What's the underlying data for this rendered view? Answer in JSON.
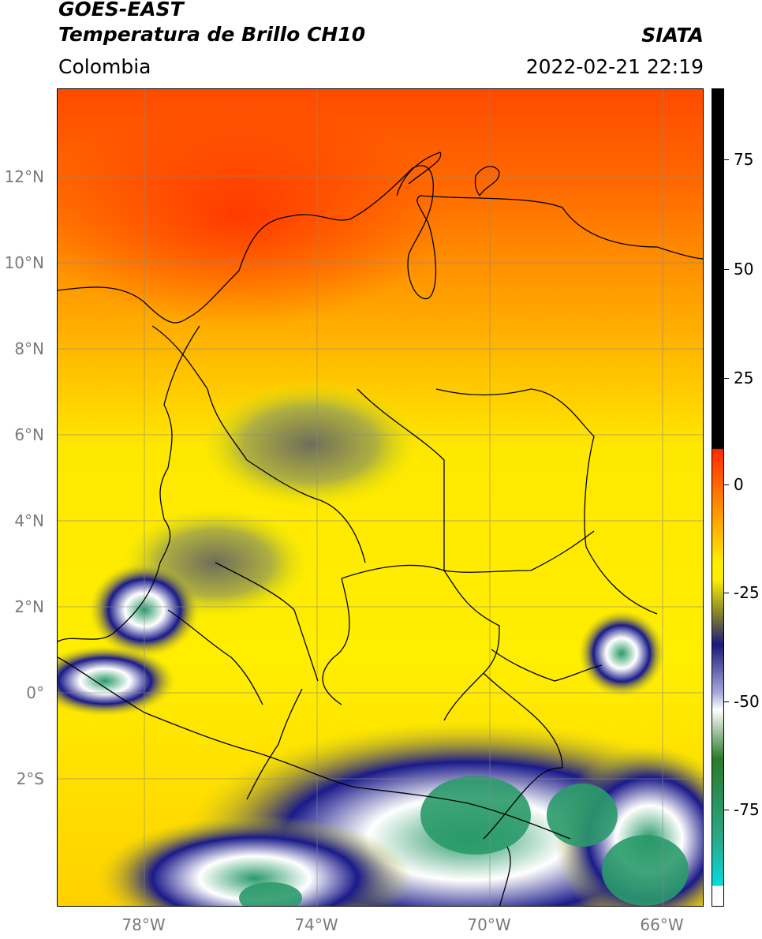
{
  "header": {
    "line1": "GOES-EAST",
    "line2": "Temperatura de Brillo CH10",
    "line3": "Colombia",
    "right1": "SIATA",
    "right2": "2022-02-21 22:19"
  },
  "map": {
    "lat_labels": [
      "12°N",
      "10°N",
      "8°N",
      "6°N",
      "4°N",
      "2°N",
      "0°",
      "2°S"
    ],
    "lon_labels": [
      "78°W",
      "74°W",
      "70°W",
      "66°W"
    ]
  },
  "colorbar": {
    "tick_labels": [
      "75",
      "50",
      "25",
      "0",
      "-25",
      "-50",
      "-75"
    ],
    "colors": {
      "black": "#000000",
      "red": "#ff2a00",
      "orange": "#ff9900",
      "yellow": "#ffee00",
      "olive": "#8a8a2a",
      "navy": "#1a1a7a",
      "white": "#ffffff",
      "green": "#2a9a4a",
      "cyan": "#00dddd"
    }
  }
}
